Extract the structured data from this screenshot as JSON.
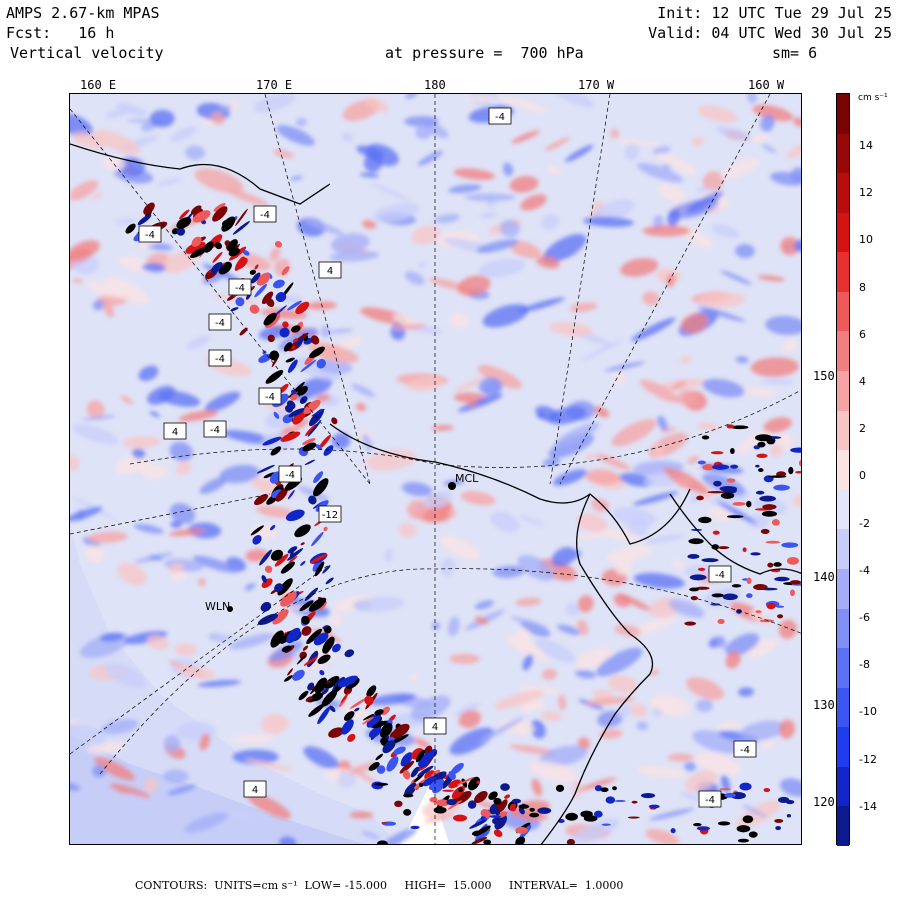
{
  "header": {
    "model": "AMPS 2.67-km MPAS",
    "init": "Init: 12 UTC Tue 29 Jul 25",
    "forecast": "Fcst:   16 h",
    "valid": "Valid: 04 UTC Wed 30 Jul 25",
    "field": "Vertical velocity",
    "level": "at pressure =  700 hPa",
    "smoothing": "sm= 6"
  },
  "longitude_labels": [
    "160 E",
    "170 E",
    "180",
    "170 W",
    "160 W"
  ],
  "latitude_labels": [
    "150 W",
    "140 W",
    "130 W",
    "120 W"
  ],
  "colorbar": {
    "units": "cm s⁻¹",
    "labels": [
      "14",
      "12",
      "10",
      "8",
      "6",
      "4",
      "2",
      "0",
      "-2",
      "-4",
      "-6",
      "-8",
      "-10",
      "-12",
      "-14"
    ],
    "colors": [
      "#0b1a8f",
      "#1026c8",
      "#1f3cf0",
      "#3b55f2",
      "#5c72f4",
      "#7f8ff5",
      "#a3aef7",
      "#c7cdf9",
      "#e3e6fb",
      "#fbe3e3",
      "#f8c4c4",
      "#f5a3a3",
      "#f27f7f",
      "#ee5959",
      "#e83030",
      "#d61313",
      "#b80d0d",
      "#970808",
      "#7a0404"
    ]
  },
  "stations": [
    {
      "label": "MCL",
      "name": "mcmurdo"
    },
    {
      "label": "WLN",
      "name": "wln"
    }
  ],
  "contour_boxes": [
    "-4",
    "-4",
    "-4",
    "4",
    "-4",
    "-4",
    "-4",
    "-4",
    "-4",
    "4",
    "-4",
    "-12",
    "4",
    "-4",
    "-4",
    "4",
    "-4"
  ],
  "footer": "CONTOURS:  UNITS=cm s⁻¹  LOW= -15.000     HIGH=  15.000     INTERVAL=  1.0000"
}
